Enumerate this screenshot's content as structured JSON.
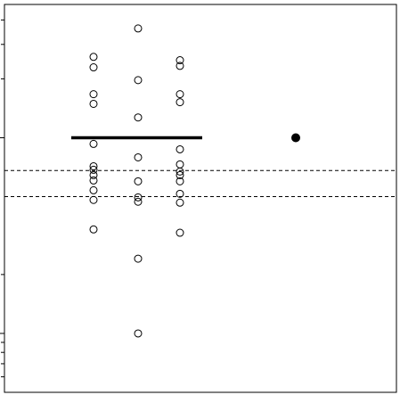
{
  "chart_data": {
    "type": "strip",
    "log_y": true,
    "categories": [
      null,
      null,
      null,
      null
    ],
    "groups": [
      {
        "values": [
          2.59,
          2.29,
          1.67,
          1.49,
          0.93,
          0.715,
          0.686,
          0.644,
          0.605,
          0.539,
          0.481,
          0.34
        ],
        "filled": false
      },
      {
        "values": [
          3.62,
          1.97,
          1.27,
          0.794,
          0.599,
          0.496,
          0.471,
          0.241,
          0.1
        ],
        "filled": false
      },
      {
        "values": [
          2.49,
          2.33,
          1.67,
          1.52,
          0.873,
          0.731,
          0.672,
          0.644,
          0.599,
          0.517,
          0.466,
          0.327
        ],
        "filled": false
      },
      {
        "values": [
          1
        ],
        "filled": true
      }
    ],
    "lines": [
      {
        "value": 1,
        "style": "solid"
      },
      {
        "value": 0.68,
        "style": "dashed"
      },
      {
        "value": 0.5,
        "style": "dashed"
      }
    ],
    "ylim": [
      0.05,
      4.8
    ],
    "yticks": [
      0.06,
      0.07,
      0.08,
      0.09,
      0.1,
      0.2,
      1,
      2,
      3,
      4
    ]
  }
}
